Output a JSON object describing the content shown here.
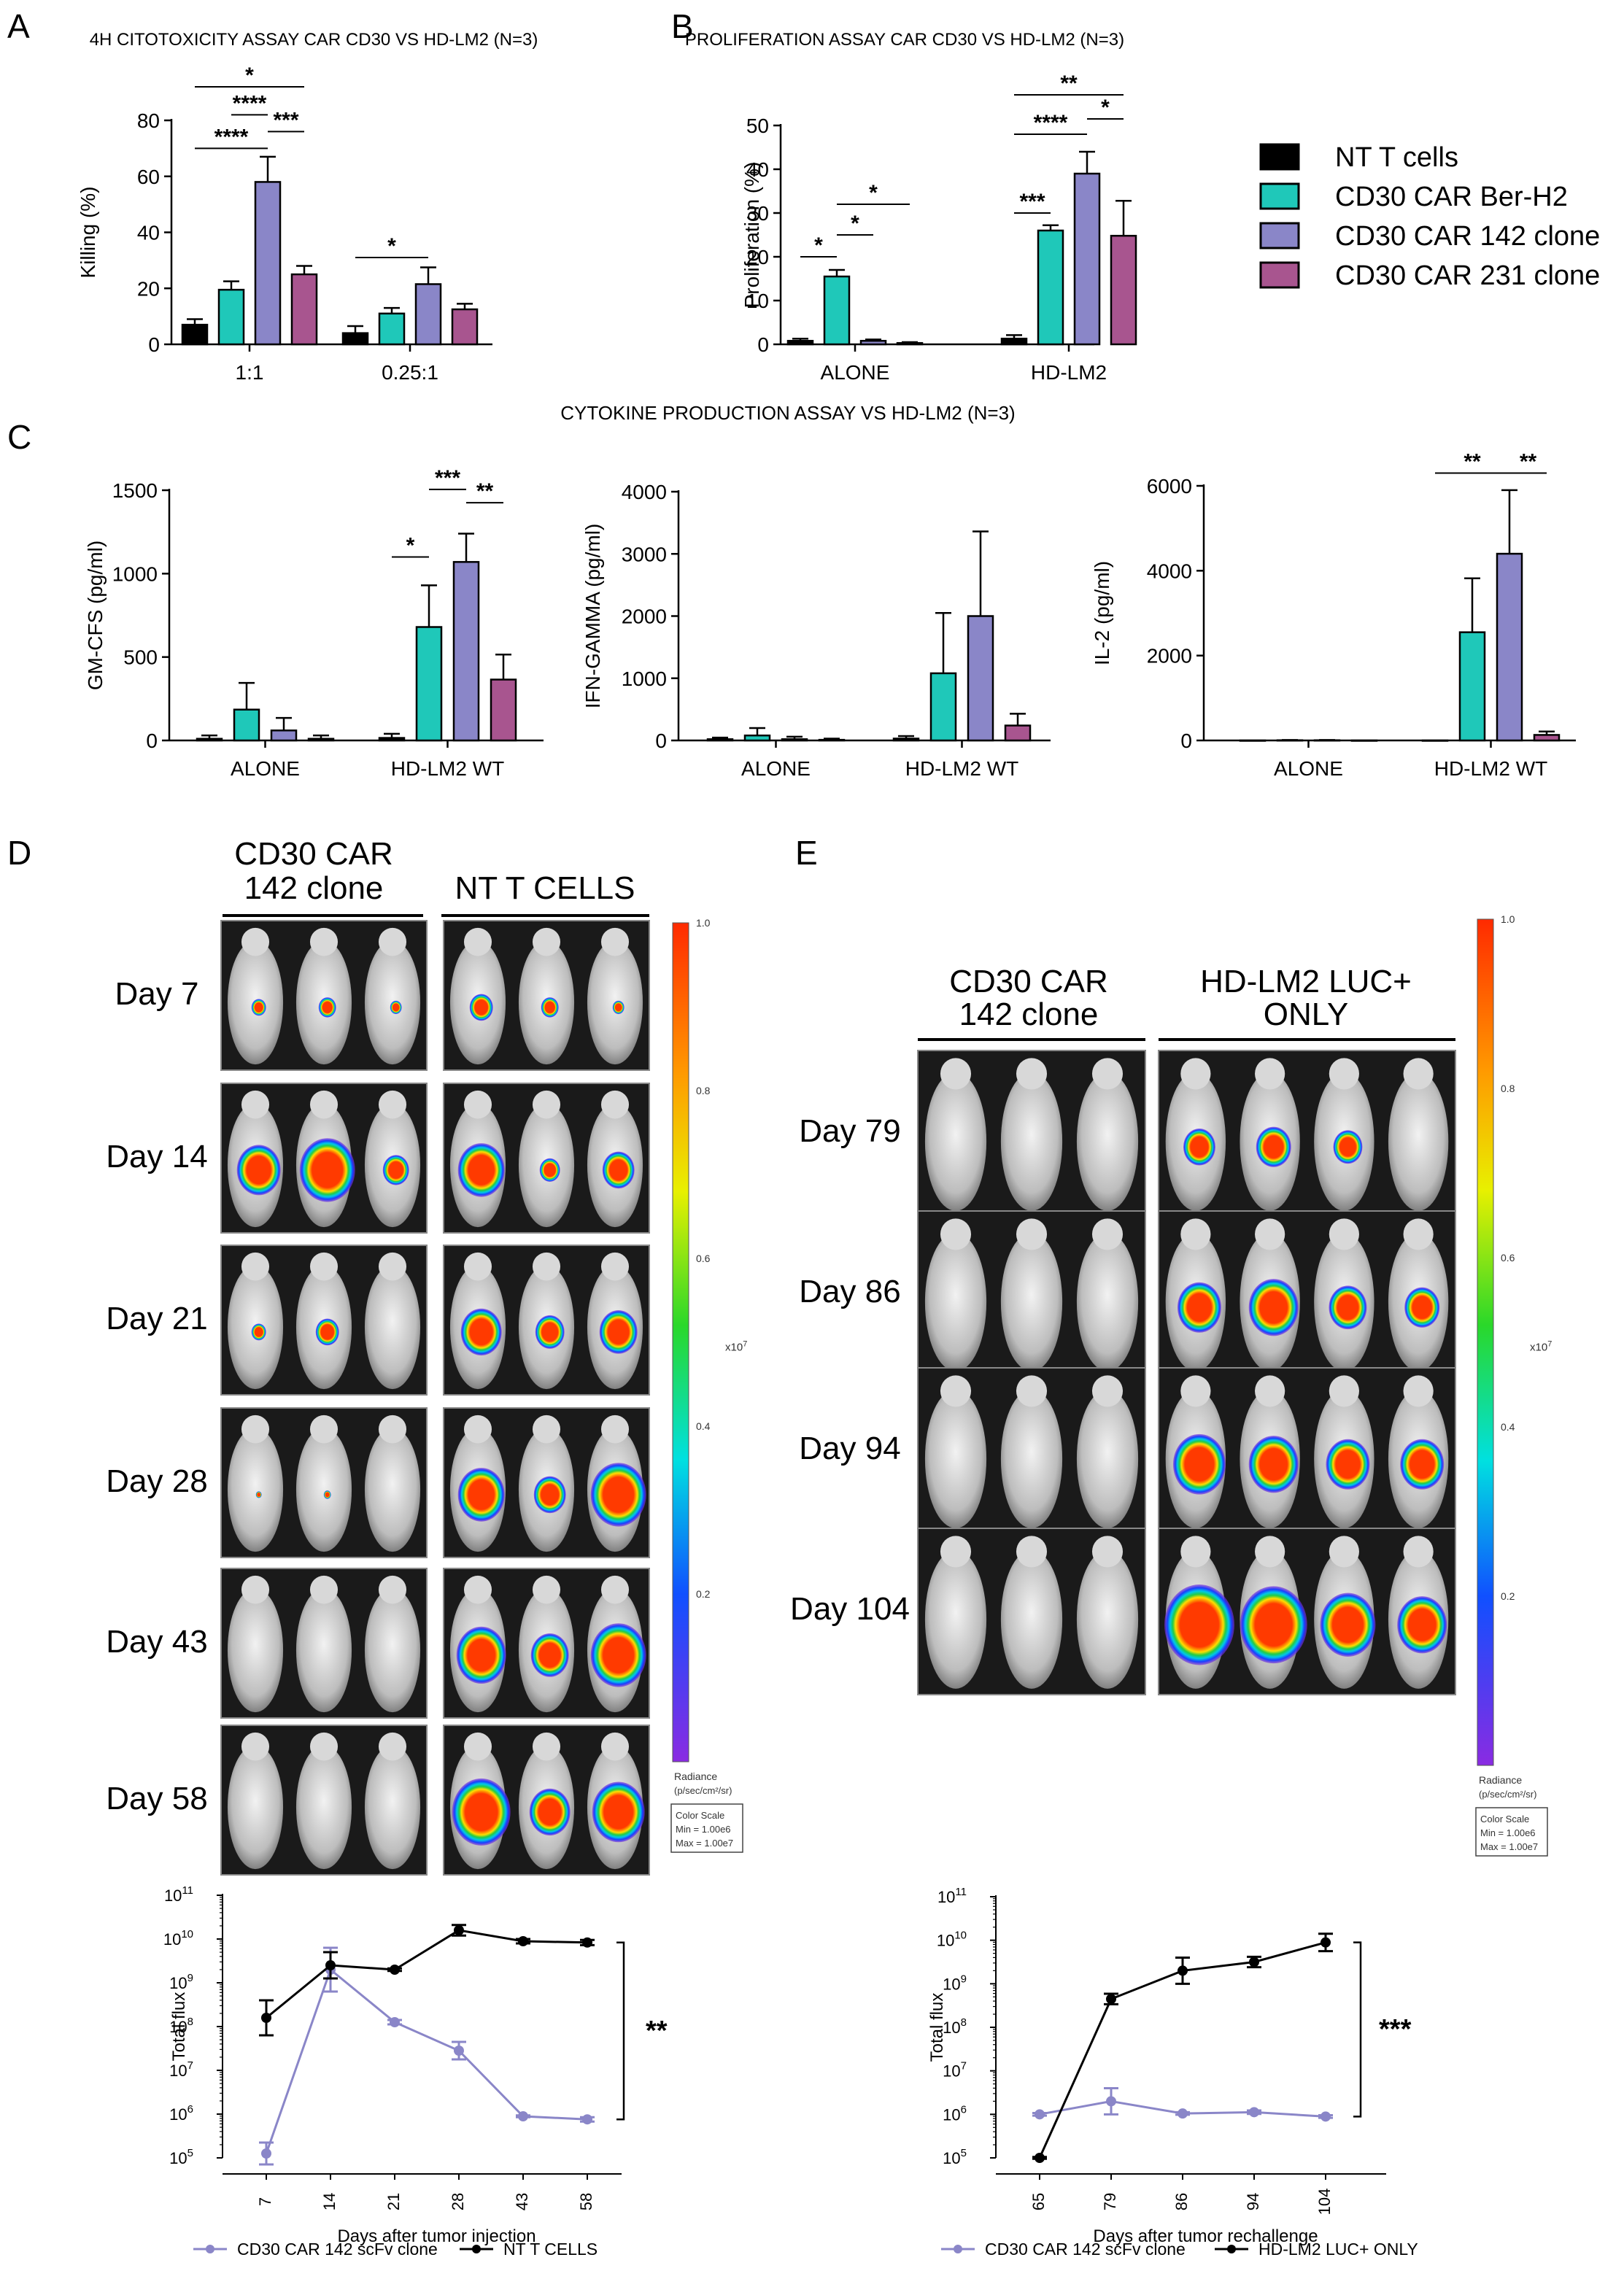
{
  "colors": {
    "nt": "#000000",
    "berh2": "#1fc8b9",
    "c142": "#8a86c8",
    "c231": "#a8558f",
    "line142": "#8a86c8",
    "lineNT": "#000000"
  },
  "legend": {
    "items": [
      {
        "label": "NT T cells",
        "color": "#000000"
      },
      {
        "label": "CD30 CAR Ber-H2",
        "color": "#1fc8b9"
      },
      {
        "label": "CD30 CAR 142 clone",
        "color": "#8a86c8"
      },
      {
        "label": "CD30 CAR 231 clone",
        "color": "#a8558f"
      }
    ]
  },
  "panel_letters": {
    "a": "A",
    "b": "B",
    "c": "C",
    "d": "D",
    "e": "E"
  },
  "panel_c_title": "CYTOKINE PRODUCTION ASSAY VS HD-LM2 (N=3)",
  "panel_d": {
    "header_left": [
      "CD30 CAR",
      "142 clone"
    ],
    "header_right": "NT T CELLS",
    "days": [
      "Day 7",
      "Day 14",
      "Day 21",
      "Day 28",
      "Day 43",
      "Day 58"
    ]
  },
  "panel_e": {
    "header_left": [
      "CD30 CAR",
      "142 clone"
    ],
    "header_right": [
      "HD-LM2 LUC+",
      "ONLY"
    ],
    "days": [
      "Day 79",
      "Day 86",
      "Day 94",
      "Day 104"
    ]
  },
  "colorbar": {
    "ticks": [
      "1.0",
      "0.8",
      "0.6",
      "0.4",
      "0.2"
    ],
    "exponent": "x10",
    "exponent_sup": "7",
    "radiance": [
      "Radiance",
      "(p/sec/cm²/sr)"
    ],
    "scale_box": [
      "Color Scale",
      "Min = 1.00e6",
      "Max = 1.00e7"
    ]
  },
  "chart_data": [
    {
      "id": "A",
      "type": "bar",
      "title": "4H CITOTOXICITY ASSAY CAR CD30 VS HD-LM2 (N=3)",
      "ylabel": "Killing (%)",
      "ylim": [
        0,
        80
      ],
      "yticks": [
        0,
        20,
        40,
        60,
        80
      ],
      "categories": [
        "1:1",
        "0.25:1"
      ],
      "series": [
        {
          "name": "NT T cells",
          "values": [
            7,
            4
          ],
          "errors": [
            2,
            2.5
          ]
        },
        {
          "name": "CD30 CAR Ber-H2",
          "values": [
            19.5,
            11
          ],
          "errors": [
            3,
            2
          ]
        },
        {
          "name": "CD30 CAR 142 clone",
          "values": [
            58,
            21.5
          ],
          "errors": [
            9,
            6
          ]
        },
        {
          "name": "CD30 CAR 231 clone",
          "values": [
            25,
            12.5
          ],
          "errors": [
            3,
            2
          ]
        }
      ],
      "significance": [
        {
          "group": 0,
          "from": 0,
          "to": 3,
          "level": 92,
          "label": "*"
        },
        {
          "group": 0,
          "from": 1,
          "to": 2,
          "level": 82,
          "label": "****"
        },
        {
          "group": 0,
          "from": 2,
          "to": 3,
          "level": 76,
          "label": "***"
        },
        {
          "group": 0,
          "from": 0,
          "to": 2,
          "level": 70,
          "label": "****"
        },
        {
          "group": 1,
          "from": 0,
          "to": 2,
          "level": 31,
          "label": "*"
        }
      ]
    },
    {
      "id": "B",
      "type": "bar",
      "title": "PROLIFERATION ASSAY CAR CD30 VS HD-LM2 (N=3)",
      "ylabel": "Proliferation (%)",
      "ylim": [
        0,
        50
      ],
      "yticks": [
        0,
        10,
        20,
        30,
        40,
        50
      ],
      "categories": [
        "ALONE",
        "HD-LM2"
      ],
      "series": [
        {
          "name": "NT T cells",
          "values": [
            0.8,
            1.3
          ],
          "errors": [
            0.5,
            0.8
          ]
        },
        {
          "name": "CD30 CAR Ber-H2",
          "values": [
            15.5,
            26
          ],
          "errors": [
            1.5,
            1.2
          ]
        },
        {
          "name": "CD30 CAR 142 clone",
          "values": [
            0.8,
            39
          ],
          "errors": [
            0.3,
            5
          ]
        },
        {
          "name": "CD30 CAR 231 clone",
          "values": [
            0.3,
            24.8
          ],
          "errors": [
            0.2,
            8
          ]
        }
      ],
      "significance": [
        {
          "group": 0,
          "from": 0,
          "to": 1,
          "level": 20,
          "label": "*"
        },
        {
          "group": 0,
          "from": 1,
          "to": 2,
          "level": 25,
          "label": "*"
        },
        {
          "group": 0,
          "from": 1,
          "to": 3,
          "level": 32,
          "label": "*"
        },
        {
          "group": 1,
          "from": 0,
          "to": 1,
          "level": 30,
          "label": "***"
        },
        {
          "group": 1,
          "from": 0,
          "to": 2,
          "level": 48,
          "label": "****"
        },
        {
          "group": 1,
          "from": 2,
          "to": 3,
          "level": 51.5,
          "label": "*"
        },
        {
          "group": 1,
          "from": 0,
          "to": 3,
          "level": 57,
          "label": "**"
        }
      ]
    },
    {
      "id": "C1",
      "type": "bar",
      "ylabel": "GM-CFS (pg/ml)",
      "ylim": [
        0,
        1500
      ],
      "yticks": [
        0,
        500,
        1000,
        1500
      ],
      "categories": [
        "ALONE",
        "HD-LM2 WT"
      ],
      "series": [
        {
          "name": "NT T cells",
          "values": [
            10,
            15
          ],
          "errors": [
            20,
            25
          ]
        },
        {
          "name": "CD30 CAR Ber-H2",
          "values": [
            185,
            680
          ],
          "errors": [
            160,
            250
          ]
        },
        {
          "name": "CD30 CAR 142 clone",
          "values": [
            60,
            1070
          ],
          "errors": [
            75,
            170
          ]
        },
        {
          "name": "CD30 CAR 231 clone",
          "values": [
            10,
            365
          ],
          "errors": [
            20,
            150
          ]
        }
      ],
      "significance": [
        {
          "group": 1,
          "from": 0,
          "to": 1,
          "level": 1100,
          "label": "*"
        },
        {
          "group": 1,
          "from": 2,
          "to": 3,
          "level": 1425,
          "label": "**"
        },
        {
          "group": 1,
          "from": 1,
          "to": 2,
          "level": 1505,
          "label": "***"
        }
      ]
    },
    {
      "id": "C2",
      "type": "bar",
      "ylabel": "IFN-GAMMA (pg/ml)",
      "ylim": [
        0,
        4000
      ],
      "yticks": [
        0,
        1000,
        2000,
        3000,
        4000
      ],
      "categories": [
        "ALONE",
        "HD-LM2 WT"
      ],
      "series": [
        {
          "name": "NT T cells",
          "values": [
            20,
            30
          ],
          "errors": [
            25,
            40
          ]
        },
        {
          "name": "CD30 CAR Ber-H2",
          "values": [
            80,
            1080
          ],
          "errors": [
            120,
            970
          ]
        },
        {
          "name": "CD30 CAR 142 clone",
          "values": [
            20,
            2000
          ],
          "errors": [
            40,
            1360
          ]
        },
        {
          "name": "CD30 CAR 231 clone",
          "values": [
            10,
            240
          ],
          "errors": [
            20,
            190
          ]
        }
      ],
      "significance": []
    },
    {
      "id": "C3",
      "type": "bar",
      "ylabel": "IL-2 (pg/ml)",
      "ylim": [
        0,
        6000
      ],
      "yticks": [
        0,
        2000,
        4000,
        6000
      ],
      "categories": [
        "ALONE",
        "HD-LM2 WT"
      ],
      "series": [
        {
          "name": "NT T cells",
          "values": [
            0,
            0
          ],
          "errors": [
            0,
            0
          ]
        },
        {
          "name": "CD30 CAR Ber-H2",
          "values": [
            5,
            2550
          ],
          "errors": [
            5,
            1270
          ]
        },
        {
          "name": "CD30 CAR 142 clone",
          "values": [
            5,
            4400
          ],
          "errors": [
            5,
            1500
          ]
        },
        {
          "name": "CD30 CAR 231 clone",
          "values": [
            0,
            130
          ],
          "errors": [
            0,
            80
          ]
        }
      ],
      "significance": [
        {
          "group": 1,
          "from": 0,
          "to": 2,
          "level": 6300,
          "label": "**"
        },
        {
          "group": 1,
          "from": 2,
          "to": 3,
          "level": 6300,
          "label": "**"
        }
      ]
    },
    {
      "id": "D",
      "type": "line",
      "ylabel": "Total flux",
      "xlabel": "Days after tumor injection",
      "yscale": "log",
      "ylim": [
        100000,
        100000000000
      ],
      "yticks": [
        5,
        6,
        7,
        8,
        9,
        10,
        11
      ],
      "x": [
        "7",
        "14",
        "21",
        "28",
        "43",
        "58"
      ],
      "series": [
        {
          "name": "CD30 CAR 142 scFv clone",
          "values": [
            5.1,
            9.3,
            8.1,
            7.45,
            5.95,
            5.88
          ],
          "errors": [
            0.25,
            0.5,
            0.05,
            0.2,
            0.02,
            0.05
          ]
        },
        {
          "name": "NT T CELLS",
          "values": [
            8.2,
            9.4,
            9.3,
            10.2,
            9.95,
            9.92
          ],
          "errors": [
            0.4,
            0.3,
            0.03,
            0.12,
            0.05,
            0.06
          ]
        }
      ],
      "significance": "**"
    },
    {
      "id": "E",
      "type": "line",
      "ylabel": "Total flux",
      "xlabel": "Days after tumor rechallenge",
      "yscale": "log",
      "ylim": [
        100000,
        100000000000
      ],
      "yticks": [
        5,
        6,
        7,
        8,
        9,
        10,
        11
      ],
      "x": [
        "65",
        "79",
        "86",
        "94",
        "104"
      ],
      "series": [
        {
          "name": "CD30 CAR 142 scFv clone",
          "values": [
            6.0,
            6.3,
            6.02,
            6.05,
            5.95
          ],
          "errors": [
            0.03,
            0.3,
            0.03,
            0.04,
            0.03
          ]
        },
        {
          "name": "HD-LM2 LUC+ ONLY",
          "values": [
            5.0,
            8.65,
            9.3,
            9.5,
            9.95
          ],
          "errors": [
            0.02,
            0.12,
            0.3,
            0.12,
            0.2
          ]
        }
      ],
      "significance": "***"
    }
  ]
}
